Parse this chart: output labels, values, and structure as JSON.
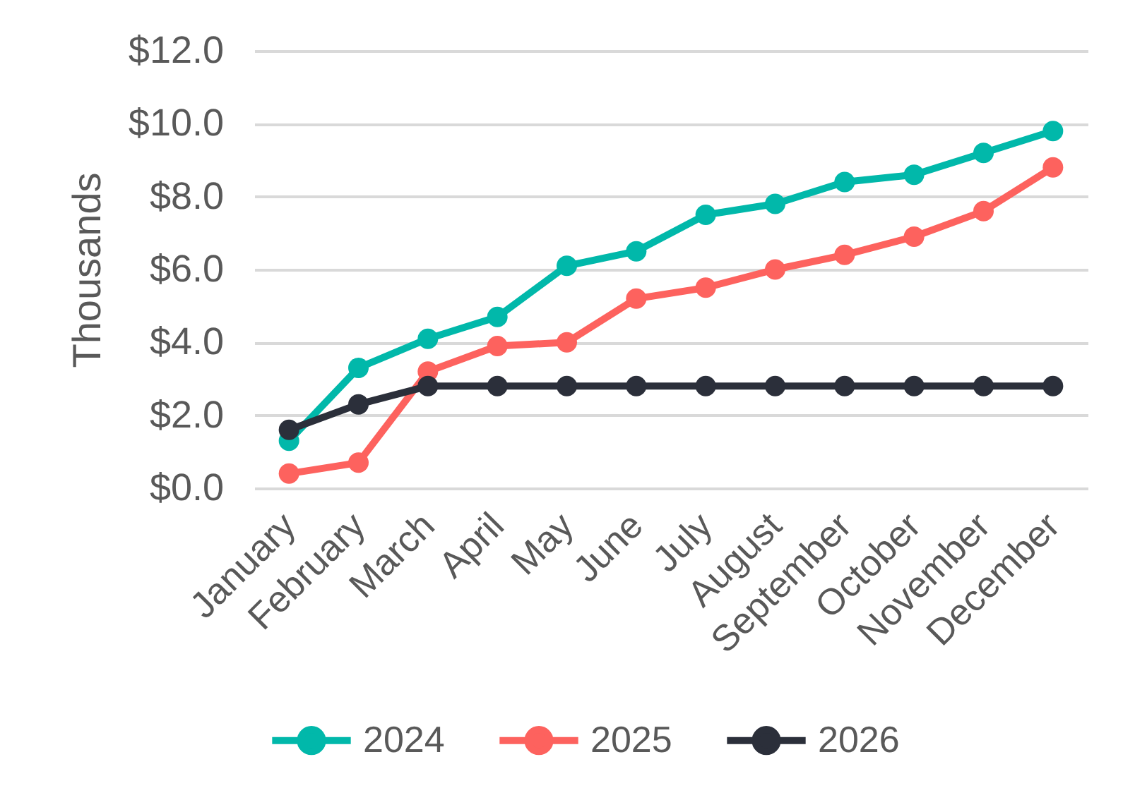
{
  "chart_data": {
    "type": "line",
    "ylabel": "Thousands",
    "categories": [
      "January",
      "February",
      "March",
      "April",
      "May",
      "June",
      "July",
      "August",
      "September",
      "October",
      "November",
      "December"
    ],
    "series": [
      {
        "name": "2024",
        "color": "#01b8aa",
        "values": [
          1.3,
          3.3,
          4.1,
          4.7,
          6.1,
          6.5,
          7.5,
          7.8,
          8.4,
          8.6,
          9.2,
          9.8
        ]
      },
      {
        "name": "2025",
        "color": "#fd625e",
        "values": [
          0.4,
          0.7,
          3.2,
          3.9,
          4.0,
          5.2,
          5.5,
          6.0,
          6.4,
          6.9,
          7.6,
          8.8
        ]
      },
      {
        "name": "2026",
        "color": "#2b2f3a",
        "values": [
          1.6,
          2.3,
          2.8,
          2.8,
          2.8,
          2.8,
          2.8,
          2.8,
          2.8,
          2.8,
          2.8,
          2.8
        ]
      }
    ],
    "ylim": [
      0,
      12
    ],
    "yticks": [
      {
        "value": 0,
        "label": "$0.0"
      },
      {
        "value": 2,
        "label": "$2.0"
      },
      {
        "value": 4,
        "label": "$4.0"
      },
      {
        "value": 6,
        "label": "$6.0"
      },
      {
        "value": 8,
        "label": "$8.0"
      },
      {
        "value": 10,
        "label": "$10.0"
      },
      {
        "value": 12,
        "label": "$12.0"
      }
    ],
    "grid": "y",
    "legend": "bottom",
    "marker": "circle",
    "line_style": "solid"
  }
}
